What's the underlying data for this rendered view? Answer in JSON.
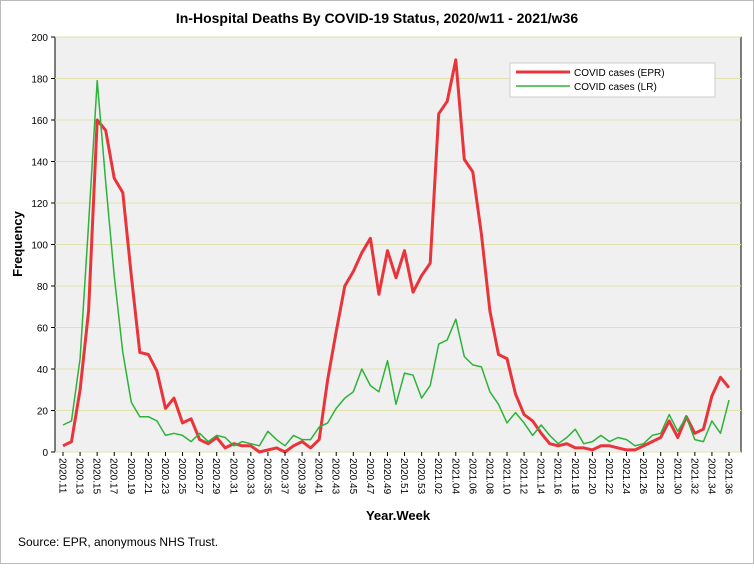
{
  "chart_data": {
    "type": "line",
    "title": "In-Hospital Deaths By COVID-19 Status, 2020/w11 - 2021/w36",
    "x_label": "Year.Week",
    "y_label": "Frequency",
    "source": "Source: EPR, anonymous NHS Trust.",
    "categories": [
      "2020.11",
      null,
      "2020.13",
      null,
      "2020.15",
      null,
      "2020.17",
      null,
      "2020.19",
      null,
      "2020.21",
      null,
      "2020.23",
      null,
      "2020.25",
      null,
      "2020.27",
      null,
      "2020.29",
      null,
      "2020.31",
      null,
      "2020.33",
      null,
      "2020.35",
      null,
      "2020.37",
      null,
      "2020.39",
      null,
      "2020.41",
      null,
      "2020.43",
      null,
      "2020.45",
      null,
      "2020.47",
      null,
      "2020.49",
      null,
      "2020.51",
      null,
      "2020.53",
      null,
      "2021.02",
      null,
      "2021.04",
      null,
      "2021.06",
      null,
      "2021.08",
      null,
      "2021.10",
      null,
      "2021.12",
      null,
      "2021.14",
      null,
      "2021.16",
      null,
      "2021.18",
      null,
      "2021.20",
      null,
      "2021.22",
      null,
      "2021.24",
      null,
      "2021.26",
      null,
      "2021.28",
      null,
      "2021.30",
      null,
      "2021.32",
      null,
      "2021.34",
      null,
      "2021.36"
    ],
    "series": [
      {
        "name": "COVID cases (EPR)",
        "color": "#e8343a",
        "width": 3,
        "values": [
          3,
          5,
          30,
          68,
          160,
          155,
          132,
          125,
          85,
          48,
          47,
          39,
          21,
          26,
          14,
          16,
          6,
          4,
          7,
          2,
          4,
          3,
          3,
          0,
          1,
          2,
          0,
          3,
          5,
          2,
          6,
          35,
          58,
          80,
          87,
          96,
          103,
          76,
          97,
          84,
          97,
          77,
          85,
          91,
          163,
          169,
          189,
          141,
          135,
          105,
          68,
          47,
          45,
          28,
          18,
          15,
          9,
          4,
          3,
          4,
          2,
          2,
          1,
          3,
          3,
          2,
          1,
          1,
          3,
          5,
          7,
          15,
          7,
          17,
          9,
          11,
          27,
          36,
          31
        ]
      },
      {
        "name": "COVID cases (LR)",
        "color": "#2db33a",
        "width": 1.5,
        "values": [
          13,
          15,
          45,
          110,
          179,
          130,
          85,
          48,
          24,
          17,
          17,
          15,
          8,
          9,
          8,
          5,
          9,
          5,
          8,
          7,
          3,
          5,
          4,
          3,
          10,
          6,
          3,
          8,
          6,
          6,
          12,
          14,
          21,
          26,
          29,
          40,
          32,
          29,
          44,
          23,
          38,
          37,
          26,
          32,
          52,
          54,
          64,
          46,
          42,
          41,
          29,
          23,
          14,
          19,
          14,
          8,
          13,
          8,
          4,
          7,
          11,
          4,
          5,
          8,
          5,
          7,
          6,
          3,
          4,
          8,
          9,
          18,
          10,
          17,
          6,
          5,
          15,
          9,
          25
        ]
      }
    ],
    "ylim": [
      0,
      200
    ],
    "yticks": [
      0,
      20,
      40,
      60,
      80,
      100,
      120,
      140,
      160,
      180,
      200
    ],
    "grid": true,
    "legend": "upper right"
  }
}
